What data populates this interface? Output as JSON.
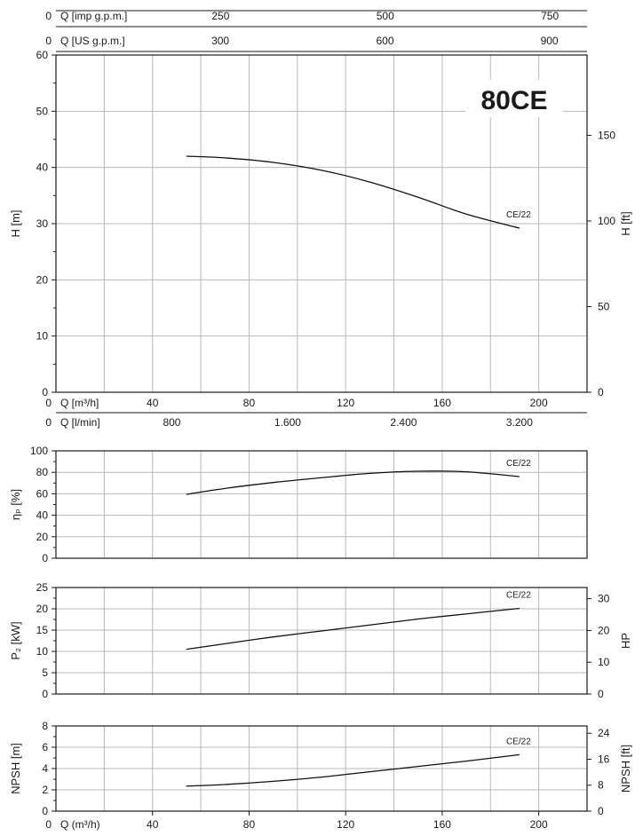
{
  "model_label": "80CE",
  "chart_data": [
    {
      "id": "head",
      "type": "line",
      "xlim": [
        0,
        220
      ],
      "ylim": [
        0,
        60
      ],
      "ylabel": "H [m]",
      "y_ticks": [
        0,
        10,
        20,
        30,
        40,
        50,
        60
      ],
      "y_right_label": "H [ft]",
      "y_right_ticks": [
        {
          "label": "0",
          "m": 0
        },
        {
          "label": "50",
          "m": 15.24
        },
        {
          "label": "100",
          "m": 30.48
        },
        {
          "label": "150",
          "m": 45.72
        }
      ],
      "top_axes": [
        {
          "label": "Q [imp g.p.m.]",
          "zero": "0",
          "ticks": [
            {
              "label": "250",
              "q": 68.2
            },
            {
              "label": "500",
              "q": 136.4
            },
            {
              "label": "750",
              "q": 204.6
            }
          ]
        },
        {
          "label": "Q [US g.p.m.]",
          "zero": "0",
          "ticks": [
            {
              "label": "300",
              "q": 68.1
            },
            {
              "label": "600",
              "q": 136.3
            },
            {
              "label": "900",
              "q": 204.4
            }
          ]
        }
      ],
      "bottom_axes": [
        {
          "label": "Q [m³/h]",
          "zero": "0",
          "ticks": [
            {
              "label": "40",
              "q": 40
            },
            {
              "label": "80",
              "q": 80
            },
            {
              "label": "120",
              "q": 120
            },
            {
              "label": "160",
              "q": 160
            },
            {
              "label": "200",
              "q": 200
            }
          ]
        },
        {
          "label": "Q [l/min]",
          "zero": "0",
          "ticks": [
            {
              "label": "800",
              "q": 48
            },
            {
              "label": "1.600",
              "q": 96
            },
            {
              "label": "2.400",
              "q": 144
            },
            {
              "label": "3.200",
              "q": 192
            }
          ]
        }
      ],
      "series": [
        {
          "name": "CE/22",
          "x": [
            54,
            70,
            90,
            110,
            130,
            150,
            170,
            192
          ],
          "y": [
            42,
            41.7,
            40.9,
            39.5,
            37.4,
            34.7,
            31.7,
            29.2
          ]
        }
      ]
    },
    {
      "id": "efficiency",
      "type": "line",
      "xlim": [
        0,
        220
      ],
      "ylim": [
        0,
        100
      ],
      "ylabel": "ηₚ [%]",
      "y_ticks": [
        0,
        20,
        40,
        60,
        80,
        100
      ],
      "series": [
        {
          "name": "CE/22",
          "x": [
            54,
            70,
            90,
            110,
            130,
            150,
            170,
            192
          ],
          "y": [
            59.5,
            65,
            70.5,
            75,
            79,
            81,
            80.5,
            76
          ]
        }
      ]
    },
    {
      "id": "power",
      "type": "line",
      "xlim": [
        0,
        220
      ],
      "ylim": [
        0,
        25
      ],
      "ylabel": "P₂ [kW]",
      "y_ticks": [
        0,
        5,
        10,
        15,
        20,
        25
      ],
      "y_right_label": "HP",
      "y_right_ticks": [
        {
          "label": "0",
          "m": 0
        },
        {
          "label": "10",
          "m": 7.46
        },
        {
          "label": "20",
          "m": 14.91
        },
        {
          "label": "30",
          "m": 22.37
        }
      ],
      "series": [
        {
          "name": "CE/22",
          "x": [
            54,
            70,
            90,
            110,
            130,
            150,
            170,
            192
          ],
          "y": [
            10.5,
            11.8,
            13.4,
            14.8,
            16.2,
            17.6,
            18.8,
            20.1
          ]
        }
      ]
    },
    {
      "id": "npsh",
      "type": "line",
      "xlim": [
        0,
        220
      ],
      "ylim": [
        0,
        8
      ],
      "ylabel": "NPSH [m]",
      "y_ticks": [
        0,
        2,
        4,
        6,
        8
      ],
      "y_right_label": "NPSH [ft]",
      "y_right_ticks": [
        {
          "label": "0",
          "m": 0
        },
        {
          "label": "8",
          "m": 2.438
        },
        {
          "label": "16",
          "m": 4.877
        },
        {
          "label": "24",
          "m": 7.315
        }
      ],
      "bottom_axes": [
        {
          "label": "Q (m³/h)",
          "zero": "0",
          "ticks": [
            {
              "label": "40",
              "q": 40
            },
            {
              "label": "80",
              "q": 80
            },
            {
              "label": "120",
              "q": 120
            },
            {
              "label": "160",
              "q": 160
            },
            {
              "label": "200",
              "q": 200
            }
          ]
        }
      ],
      "series": [
        {
          "name": "CE/22",
          "x": [
            54,
            70,
            90,
            110,
            130,
            150,
            170,
            192
          ],
          "y": [
            2.35,
            2.5,
            2.8,
            3.2,
            3.7,
            4.2,
            4.7,
            5.3
          ]
        }
      ]
    }
  ]
}
